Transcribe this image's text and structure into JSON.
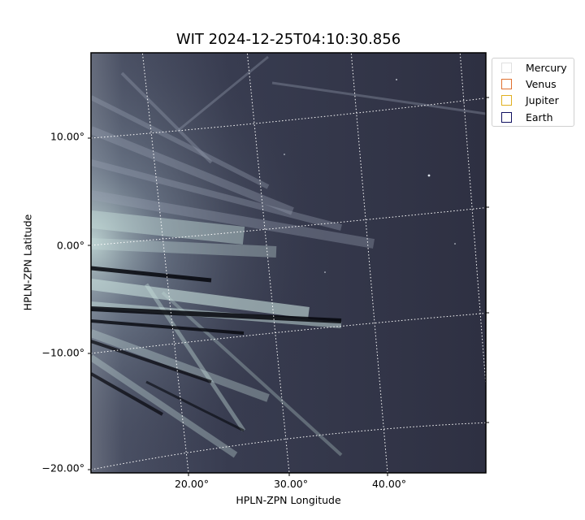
{
  "title": "WIT 2024-12-25T04:10:30.856",
  "x_axis": {
    "label": "HPLN-ZPN Longitude",
    "ticks": [
      "20.00°",
      "30.00°",
      "40.00°"
    ]
  },
  "y_axis": {
    "label": "HPLN-ZPN Latitude",
    "ticks": [
      "10.00°",
      "0.00°",
      "−10.00°",
      "−20.00°"
    ]
  },
  "legend": {
    "items": [
      {
        "label": "Mercury",
        "color": "#e0e0e0"
      },
      {
        "label": "Venus",
        "color": "#e07030"
      },
      {
        "label": "Jupiter",
        "color": "#e0b020"
      },
      {
        "label": "Earth",
        "color": "#101060"
      }
    ]
  },
  "colors": {
    "background": "#2e3040",
    "streamer": "#c8e0dc",
    "grid": "#ffffff"
  }
}
